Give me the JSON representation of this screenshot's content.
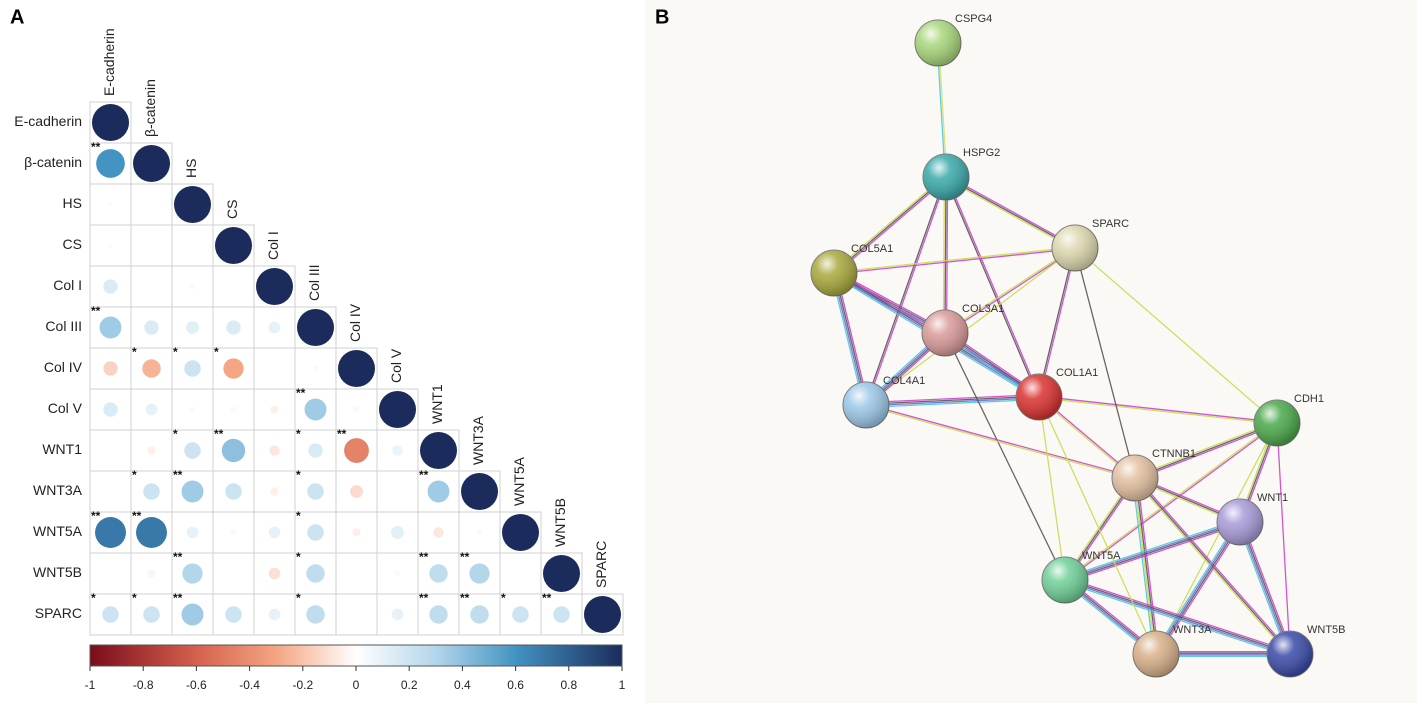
{
  "panel_a": {
    "label": "A",
    "variables": [
      "E-cadherin",
      "β-catenin",
      "HS",
      "CS",
      "Col I",
      "Col III",
      "Col IV",
      "Col V",
      "WNT1",
      "WNT3A",
      "WNT5A",
      "WNT5B",
      "SPARC"
    ],
    "cells": [
      [
        {
          "value": 1
        }
      ],
      [
        {
          "value": 0.6,
          "stars": "**"
        },
        {
          "value": 1
        }
      ],
      [
        {
          "value": 0.02
        },
        {
          "value": 0
        },
        {
          "value": 1
        }
      ],
      [
        {
          "value": 0.02
        },
        {
          "value": 0
        },
        {
          "value": 0
        },
        {
          "value": 1
        }
      ],
      [
        {
          "value": 0.15
        },
        {
          "value": 0
        },
        {
          "value": 0.03
        },
        {
          "value": 0
        },
        {
          "value": 1
        }
      ],
      [
        {
          "value": 0.35,
          "stars": "**"
        },
        {
          "value": 0.15
        },
        {
          "value": 0.12
        },
        {
          "value": 0.15
        },
        {
          "value": 0.1
        },
        {
          "value": 1
        }
      ],
      [
        {
          "value": -0.15
        },
        {
          "value": -0.25,
          "stars": "*"
        },
        {
          "value": 0.2,
          "stars": "*"
        },
        {
          "value": -0.3,
          "stars": "*"
        },
        {
          "value": 0
        },
        {
          "value": 0.03
        },
        {
          "value": 1
        }
      ],
      [
        {
          "value": 0.15
        },
        {
          "value": 0.1
        },
        {
          "value": 0.03
        },
        {
          "value": 0.03
        },
        {
          "value": -0.05
        },
        {
          "value": 0.35,
          "stars": "**"
        },
        {
          "value": 0.03
        },
        {
          "value": 1
        }
      ],
      [
        {
          "value": 0
        },
        {
          "value": -0.05
        },
        {
          "value": 0.2,
          "stars": "*"
        },
        {
          "value": 0.4,
          "stars": "**"
        },
        {
          "value": -0.08
        },
        {
          "value": 0.15,
          "stars": "*"
        },
        {
          "value": -0.45,
          "stars": "**"
        },
        {
          "value": 0.08
        },
        {
          "value": 1
        }
      ],
      [
        {
          "value": 0
        },
        {
          "value": 0.2,
          "stars": "*"
        },
        {
          "value": 0.35,
          "stars": "**"
        },
        {
          "value": 0.2
        },
        {
          "value": -0.05
        },
        {
          "value": 0.2,
          "stars": "*"
        },
        {
          "value": -0.12
        },
        {
          "value": 0
        },
        {
          "value": 0.35,
          "stars": "**"
        },
        {
          "value": 1
        }
      ],
      [
        {
          "value": 0.7,
          "stars": "**"
        },
        {
          "value": 0.7,
          "stars": "**"
        },
        {
          "value": 0.1
        },
        {
          "value": 0.03
        },
        {
          "value": 0.1
        },
        {
          "value": 0.2,
          "stars": "*"
        },
        {
          "value": -0.05
        },
        {
          "value": 0.12
        },
        {
          "value": -0.08
        },
        {
          "value": 0.03
        },
        {
          "value": 1
        }
      ],
      [
        {
          "value": 0
        },
        {
          "value": 0.05
        },
        {
          "value": 0.3,
          "stars": "**"
        },
        {
          "value": 0
        },
        {
          "value": -0.1
        },
        {
          "value": 0.25,
          "stars": "*"
        },
        {
          "value": 0
        },
        {
          "value": 0.03
        },
        {
          "value": 0.25,
          "stars": "**"
        },
        {
          "value": 0.3,
          "stars": "**"
        },
        {
          "value": 0
        },
        {
          "value": 1
        }
      ],
      [
        {
          "value": 0.2,
          "stars": "*"
        },
        {
          "value": 0.2,
          "stars": "*"
        },
        {
          "value": 0.35,
          "stars": "**"
        },
        {
          "value": 0.2
        },
        {
          "value": 0.1
        },
        {
          "value": 0.25,
          "stars": "*"
        },
        {
          "value": 0
        },
        {
          "value": 0.1
        },
        {
          "value": 0.25,
          "stars": "**"
        },
        {
          "value": 0.25,
          "stars": "**"
        },
        {
          "value": 0.2,
          "stars": "*"
        },
        {
          "value": 0.2,
          "stars": "**"
        },
        {
          "value": 1
        }
      ]
    ],
    "colorbar": {
      "lim": [
        -1,
        1
      ],
      "ticks": [
        -1,
        -0.8,
        -0.6,
        -0.4,
        -0.2,
        0,
        0.2,
        0.4,
        0.6,
        0.8,
        1
      ]
    }
  },
  "panel_b": {
    "label": "B",
    "nodes": [
      {
        "label": "CSPG4",
        "color": "#a8d67a"
      },
      {
        "label": "HSPG2",
        "color": "#3aa9a9"
      },
      {
        "label": "SPARC",
        "color": "#ddd8ae"
      },
      {
        "label": "COL5A1",
        "color": "#a9a83c"
      },
      {
        "label": "COL3A1",
        "color": "#d99a99"
      },
      {
        "label": "COL1A1",
        "color": "#d9312e"
      },
      {
        "label": "COL4A1",
        "color": "#9cc8e8"
      },
      {
        "label": "CDH1",
        "color": "#4aa84a"
      },
      {
        "label": "CTNNB1",
        "color": "#e2c0a0"
      },
      {
        "label": "WNT1",
        "color": "#a89ad8"
      },
      {
        "label": "WNT5A",
        "color": "#6fcf98"
      },
      {
        "label": "WNT3A",
        "color": "#d8b08a"
      },
      {
        "label": "WNT5B",
        "color": "#3a4aa8"
      }
    ]
  }
}
